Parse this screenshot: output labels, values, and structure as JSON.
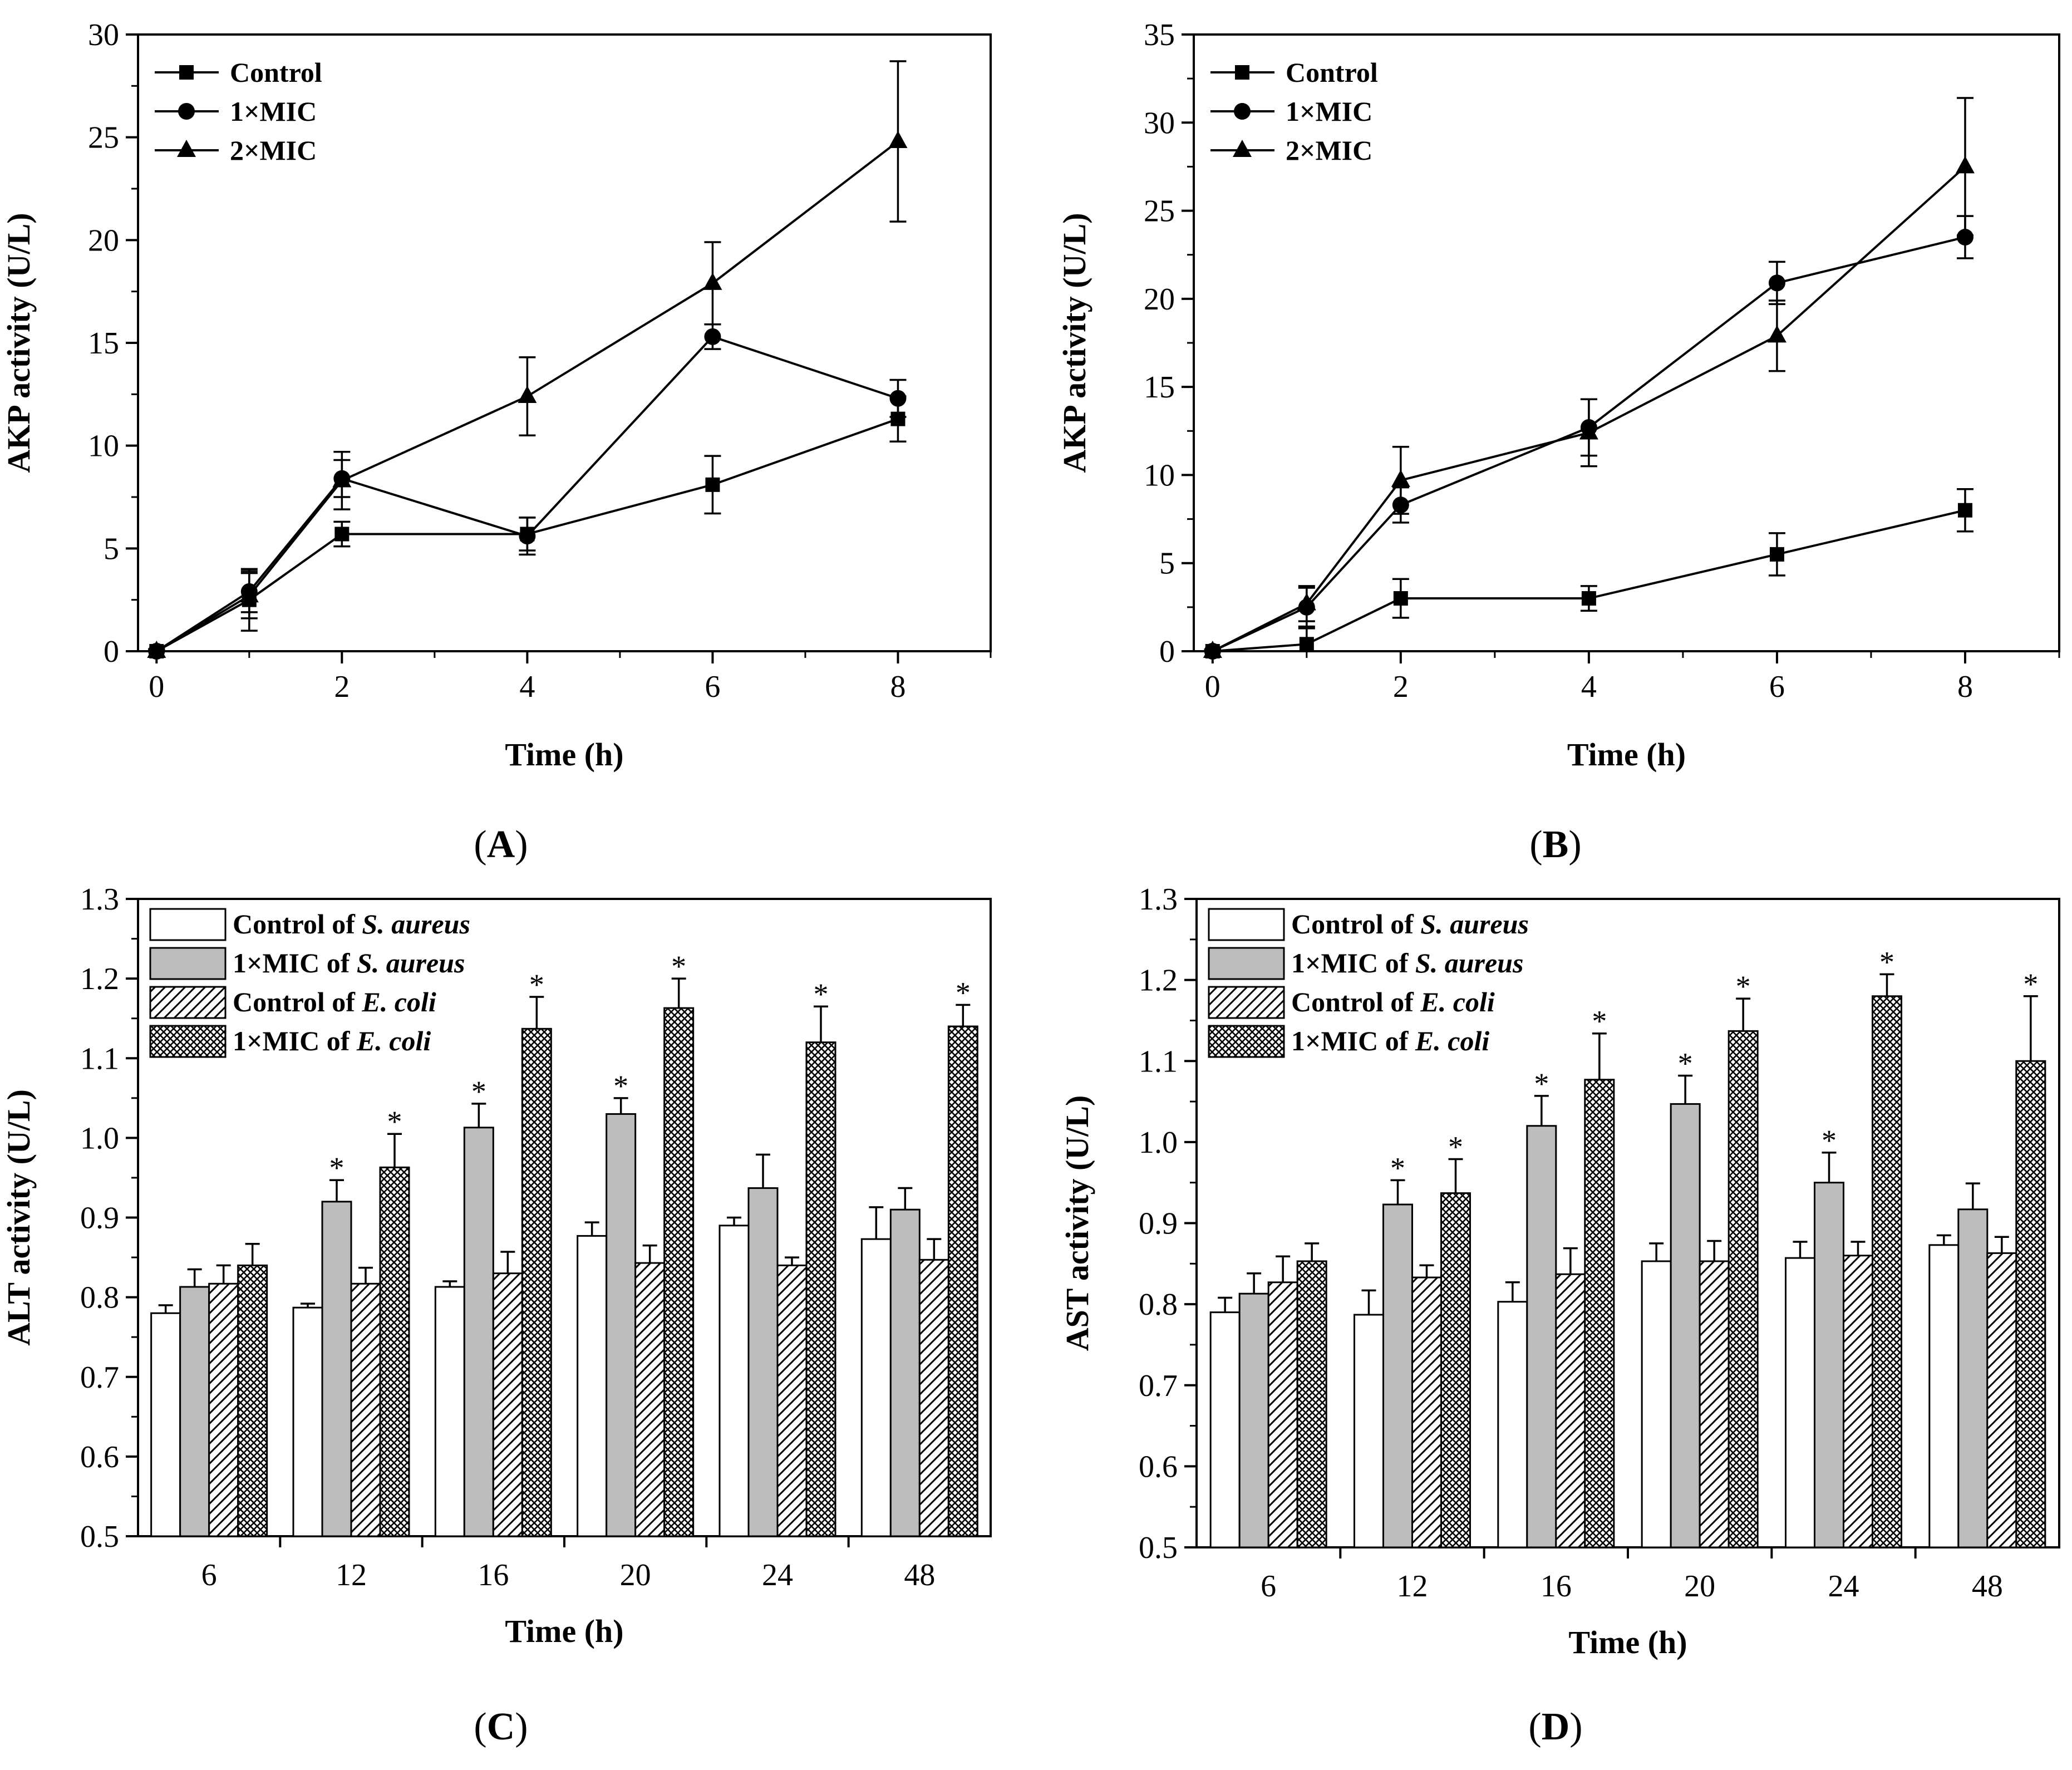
{
  "figure": {
    "panels": [
      {
        "id": "A",
        "panel_label": "A",
        "type": "line",
        "xlabel": "Time (h)",
        "ylabel": "AKP activity (U/L)",
        "xlim": [
          -0.2,
          9
        ],
        "ylim": [
          0,
          30
        ],
        "xticks": [
          0,
          2,
          4,
          6,
          8
        ],
        "yticks": [
          0,
          5,
          10,
          15,
          20,
          25,
          30
        ],
        "legend_position": "top-left",
        "x": [
          0,
          1,
          2,
          4,
          6,
          8
        ],
        "series": [
          {
            "name": "Control",
            "marker": "square",
            "values": [
              0,
              2.5,
              5.7,
              5.7,
              8.1,
              11.3
            ],
            "errors": [
              0.1,
              1.5,
              0.6,
              0.8,
              1.4,
              1.1
            ]
          },
          {
            "name": "1×MIC",
            "marker": "circle",
            "values": [
              0,
              2.9,
              8.4,
              5.6,
              15.3,
              12.3
            ],
            "errors": [
              0.1,
              1.0,
              0.9,
              0.9,
              0.6,
              0.9
            ]
          },
          {
            "name": "2×MIC",
            "marker": "triangle",
            "values": [
              0,
              2.7,
              8.3,
              12.4,
              17.9,
              24.8
            ],
            "errors": [
              0.1,
              1.1,
              1.4,
              1.9,
              2.0,
              3.9
            ]
          }
        ]
      },
      {
        "id": "B",
        "panel_label": "B",
        "type": "line",
        "xlabel": "Time (h)",
        "ylabel": "AKP activity (U/L)",
        "xlim": [
          -0.2,
          9
        ],
        "ylim": [
          0,
          35
        ],
        "xticks": [
          0,
          2,
          4,
          6,
          8
        ],
        "yticks": [
          0,
          5,
          10,
          15,
          20,
          25,
          30,
          35
        ],
        "legend_position": "top-left",
        "x": [
          0,
          1,
          2,
          4,
          6,
          8
        ],
        "series": [
          {
            "name": "Control",
            "marker": "square",
            "values": [
              0,
              0.4,
              3.0,
              3.0,
              5.5,
              8.0
            ],
            "errors": [
              0.1,
              0.9,
              1.1,
              0.7,
              1.2,
              1.2
            ]
          },
          {
            "name": "1×MIC",
            "marker": "circle",
            "values": [
              0,
              2.5,
              8.3,
              12.7,
              20.9,
              23.5
            ],
            "errors": [
              0.1,
              1.1,
              1.0,
              1.6,
              1.2,
              1.2
            ]
          },
          {
            "name": "2×MIC",
            "marker": "triangle",
            "values": [
              0,
              2.7,
              9.7,
              12.4,
              17.9,
              27.5
            ],
            "errors": [
              0.1,
              1.0,
              1.9,
              1.9,
              2.0,
              3.9
            ]
          }
        ]
      },
      {
        "id": "C",
        "panel_label": "C",
        "type": "bar",
        "xlabel": "Time (h)",
        "ylabel": "ALT activity (U/L)",
        "ylim": [
          0.5,
          1.3
        ],
        "yticks": [
          "0.5",
          "0.6",
          "0.7",
          "0.8",
          "0.9",
          "1.0",
          "1.1",
          "1.2",
          "1.3"
        ],
        "legend_position": "top-left",
        "categories": [
          "6",
          "12",
          "16",
          "20",
          "24",
          "48"
        ],
        "series": [
          {
            "name_prefix": "Control of ",
            "name_species": "S. aureus",
            "pattern": "white",
            "values": [
              0.78,
              0.787,
              0.813,
              0.877,
              0.89,
              0.873
            ],
            "errors": [
              0.01,
              0.005,
              0.007,
              0.017,
              0.01,
              0.04
            ],
            "significant": [
              false,
              false,
              false,
              false,
              false,
              false
            ]
          },
          {
            "name_prefix": "1×MIC of ",
            "name_species": "S. aureus",
            "pattern": "gray",
            "values": [
              0.813,
              0.92,
              1.013,
              1.03,
              0.937,
              0.91
            ],
            "errors": [
              0.022,
              0.027,
              0.03,
              0.02,
              0.042,
              0.027
            ],
            "significant": [
              false,
              true,
              true,
              true,
              false,
              false
            ]
          },
          {
            "name_prefix": "Control of ",
            "name_species": "E. coli",
            "pattern": "hatch",
            "values": [
              0.817,
              0.817,
              0.83,
              0.843,
              0.84,
              0.847
            ],
            "errors": [
              0.023,
              0.02,
              0.027,
              0.022,
              0.01,
              0.026
            ],
            "significant": [
              false,
              false,
              false,
              false,
              false,
              false
            ]
          },
          {
            "name_prefix": "1×MIC of ",
            "name_species": "E. coli",
            "pattern": "crosshatch",
            "values": [
              0.84,
              0.963,
              1.137,
              1.163,
              1.12,
              1.14
            ],
            "errors": [
              0.027,
              0.042,
              0.04,
              0.037,
              0.045,
              0.027
            ],
            "significant": [
              false,
              true,
              true,
              true,
              true,
              true
            ]
          }
        ]
      },
      {
        "id": "D",
        "panel_label": "D",
        "type": "bar",
        "xlabel": "Time (h)",
        "ylabel": "AST activity (U/L)",
        "ylim": [
          0.5,
          1.3
        ],
        "yticks": [
          "0.5",
          "0.6",
          "0.7",
          "0.8",
          "0.9",
          "1.0",
          "1.1",
          "1.2",
          "1.3"
        ],
        "legend_position": "top-left",
        "categories": [
          "6",
          "12",
          "16",
          "20",
          "24",
          "48"
        ],
        "series": [
          {
            "name_prefix": "Control of ",
            "name_species": "S. aureus",
            "pattern": "white",
            "values": [
              0.79,
              0.787,
              0.803,
              0.853,
              0.857,
              0.873
            ],
            "errors": [
              0.018,
              0.03,
              0.024,
              0.022,
              0.02,
              0.012
            ],
            "significant": [
              false,
              false,
              false,
              false,
              false,
              false
            ]
          },
          {
            "name_prefix": "1×MIC of ",
            "name_species": "S. aureus",
            "pattern": "gray",
            "values": [
              0.813,
              0.923,
              1.02,
              1.047,
              0.95,
              0.917
            ],
            "errors": [
              0.025,
              0.03,
              0.037,
              0.035,
              0.037,
              0.032
            ],
            "significant": [
              false,
              true,
              true,
              true,
              true,
              false
            ]
          },
          {
            "name_prefix": "Control of ",
            "name_species": "E. coli",
            "pattern": "hatch",
            "values": [
              0.827,
              0.833,
              0.837,
              0.853,
              0.86,
              0.863
            ],
            "errors": [
              0.032,
              0.015,
              0.032,
              0.025,
              0.017,
              0.02
            ],
            "significant": [
              false,
              false,
              false,
              false,
              false,
              false
            ]
          },
          {
            "name_prefix": "1×MIC of ",
            "name_species": "E. coli",
            "pattern": "crosshatch",
            "values": [
              0.853,
              0.937,
              1.077,
              1.137,
              1.18,
              1.1
            ],
            "errors": [
              0.022,
              0.042,
              0.057,
              0.04,
              0.027,
              0.08
            ],
            "significant": [
              false,
              true,
              true,
              true,
              true,
              true
            ]
          }
        ]
      }
    ]
  },
  "chart_data": [
    {
      "type": "line",
      "panel": "A",
      "xlabel": "Time (h)",
      "ylabel": "AKP activity (U/L)",
      "ylim": [
        0,
        30
      ],
      "x": [
        0,
        1,
        2,
        4,
        6,
        8
      ],
      "series": [
        {
          "name": "Control",
          "values": [
            0,
            2.5,
            5.7,
            5.7,
            8.1,
            11.3
          ]
        },
        {
          "name": "1×MIC",
          "values": [
            0,
            2.9,
            8.4,
            5.6,
            15.3,
            12.3
          ]
        },
        {
          "name": "2×MIC",
          "values": [
            0,
            2.7,
            8.3,
            12.4,
            17.9,
            24.8
          ]
        }
      ]
    },
    {
      "type": "line",
      "panel": "B",
      "xlabel": "Time (h)",
      "ylabel": "AKP activity (U/L)",
      "ylim": [
        0,
        35
      ],
      "x": [
        0,
        1,
        2,
        4,
        6,
        8
      ],
      "series": [
        {
          "name": "Control",
          "values": [
            0,
            0.4,
            3.0,
            3.0,
            5.5,
            8.0
          ]
        },
        {
          "name": "1×MIC",
          "values": [
            0,
            2.5,
            8.3,
            12.7,
            20.9,
            23.5
          ]
        },
        {
          "name": "2×MIC",
          "values": [
            0,
            2.7,
            9.7,
            12.4,
            17.9,
            27.5
          ]
        }
      ]
    },
    {
      "type": "bar",
      "panel": "C",
      "xlabel": "Time (h)",
      "ylabel": "ALT activity (U/L)",
      "ylim": [
        0.5,
        1.3
      ],
      "categories": [
        "6",
        "12",
        "16",
        "20",
        "24",
        "48"
      ],
      "series": [
        {
          "name": "Control of S. aureus",
          "values": [
            0.78,
            0.787,
            0.813,
            0.877,
            0.89,
            0.873
          ]
        },
        {
          "name": "1×MIC of S. aureus",
          "values": [
            0.813,
            0.92,
            1.013,
            1.03,
            0.937,
            0.91
          ]
        },
        {
          "name": "Control of E. coli",
          "values": [
            0.817,
            0.817,
            0.83,
            0.843,
            0.84,
            0.847
          ]
        },
        {
          "name": "1×MIC of E. coli",
          "values": [
            0.84,
            0.963,
            1.137,
            1.163,
            1.12,
            1.14
          ]
        }
      ]
    },
    {
      "type": "bar",
      "panel": "D",
      "xlabel": "Time (h)",
      "ylabel": "AST activity (U/L)",
      "ylim": [
        0.5,
        1.3
      ],
      "categories": [
        "6",
        "12",
        "16",
        "20",
        "24",
        "48"
      ],
      "series": [
        {
          "name": "Control of S. aureus",
          "values": [
            0.79,
            0.787,
            0.803,
            0.853,
            0.857,
            0.873
          ]
        },
        {
          "name": "1×MIC of S. aureus",
          "values": [
            0.813,
            0.923,
            1.02,
            1.047,
            0.95,
            0.917
          ]
        },
        {
          "name": "Control of E. coli",
          "values": [
            0.827,
            0.833,
            0.837,
            0.853,
            0.86,
            0.863
          ]
        },
        {
          "name": "1×MIC of E. coli",
          "values": [
            0.853,
            0.937,
            1.077,
            1.137,
            1.18,
            1.1
          ]
        }
      ]
    }
  ]
}
